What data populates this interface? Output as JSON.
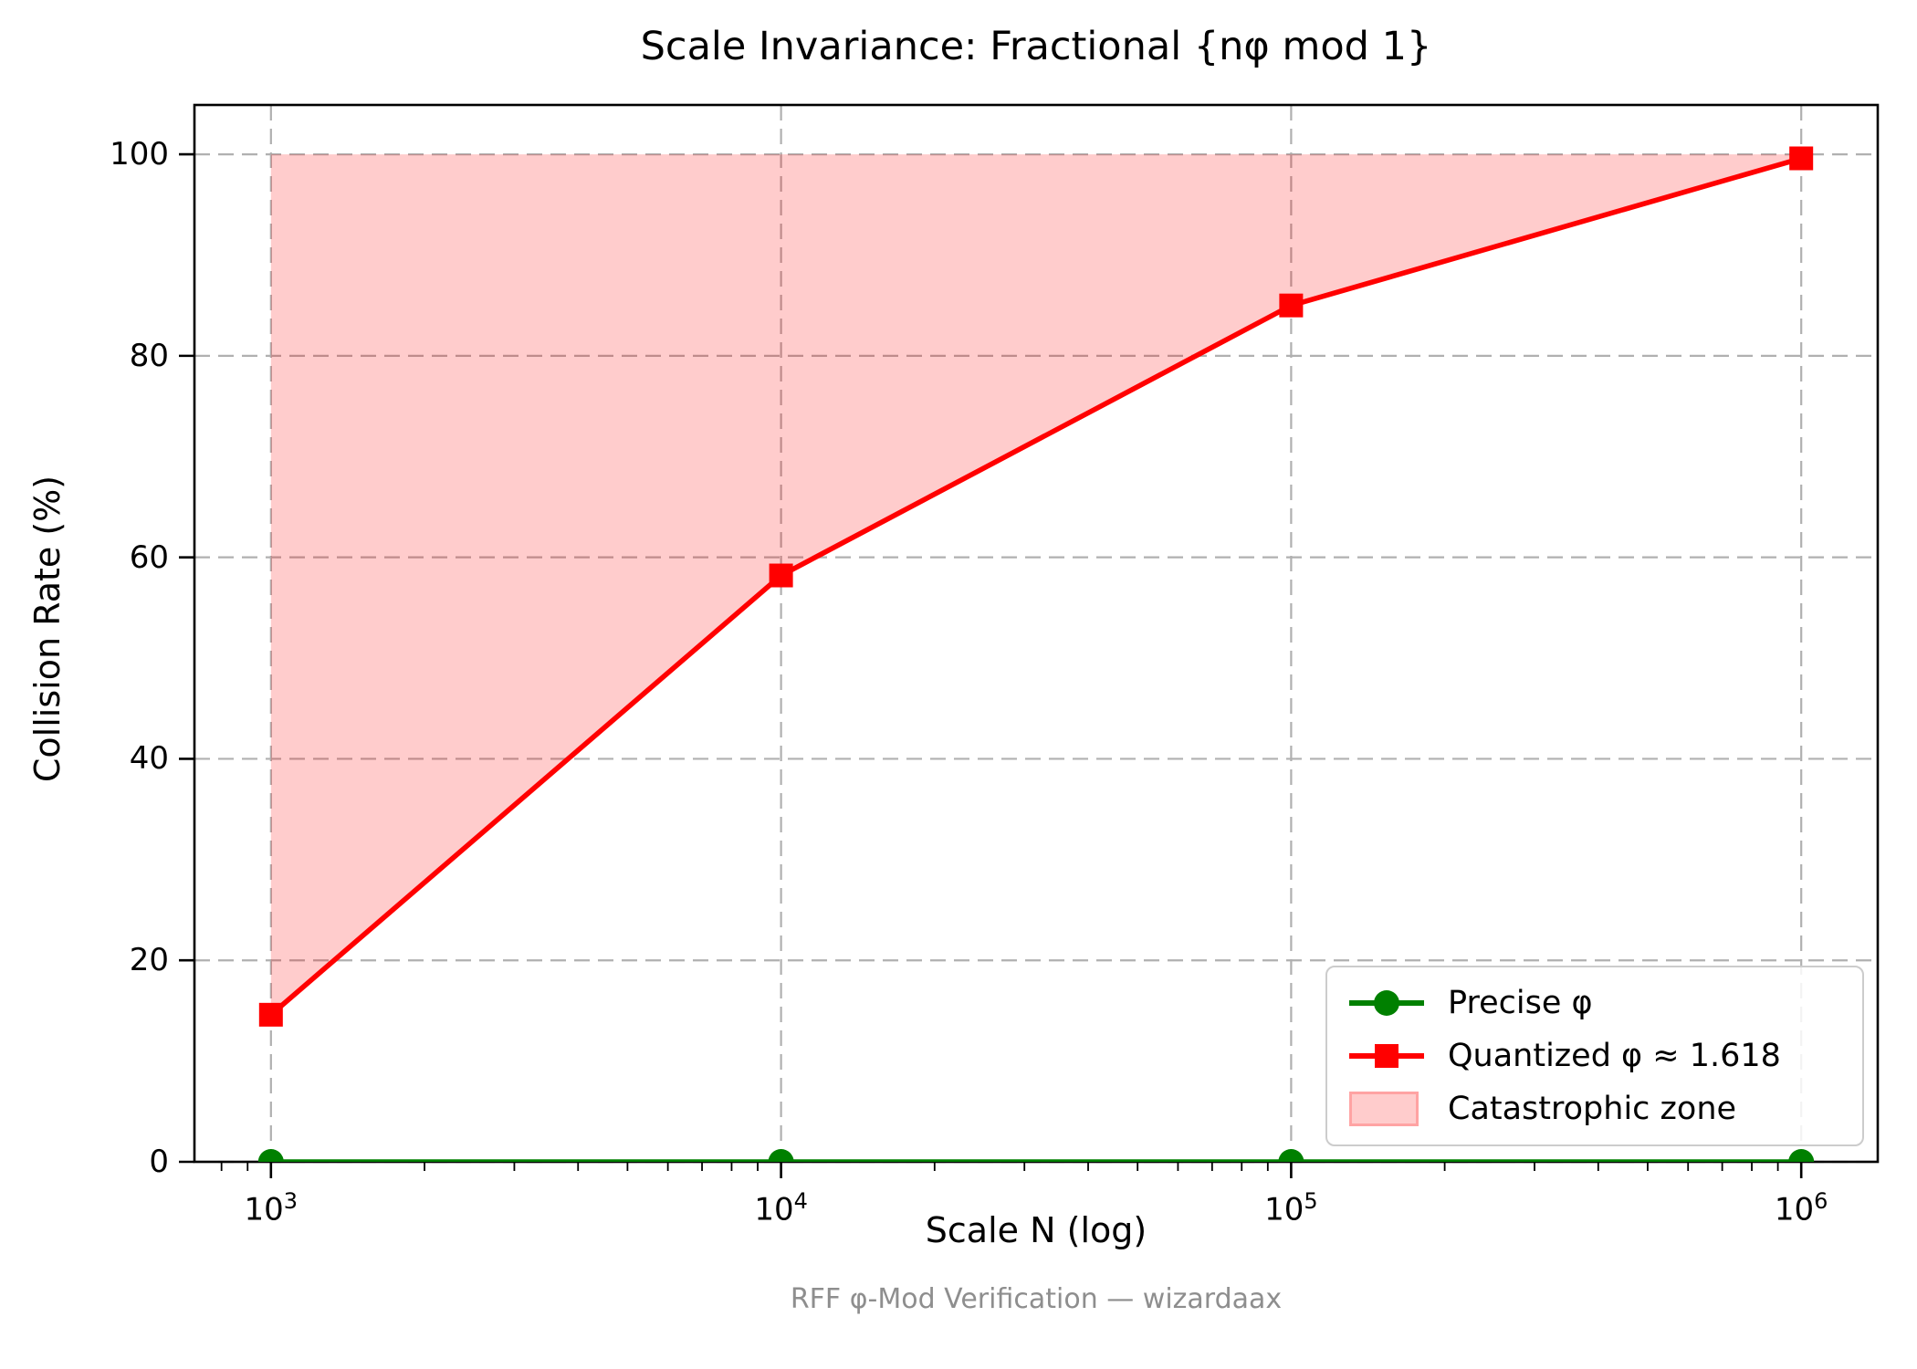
{
  "figure": {
    "footer": "RFF φ-Mod Verification — wizardaax"
  },
  "chart_data": {
    "type": "line",
    "title": "Scale Invariance: Fractional {nφ mod 1}",
    "xlabel": "Scale N (log)",
    "ylabel": "Collision Rate (%)",
    "x_scale": "log",
    "x": [
      1000,
      10000,
      100000,
      1000000
    ],
    "x_tick_labels": [
      "10³",
      "10⁴",
      "10⁵",
      "10⁶"
    ],
    "x_tick_exponents": [
      3,
      4,
      5,
      6
    ],
    "xlim_log10": [
      2.85,
      6.15
    ],
    "ylim": [
      0,
      104.9
    ],
    "yticks": [
      0,
      20,
      40,
      60,
      80,
      100
    ],
    "grid": true,
    "grid_color": "#b0b0b0",
    "grid_style": "dashed",
    "background_color": "#ffffff",
    "series": [
      {
        "name": "Precise φ",
        "color": "#008000",
        "marker": "circle",
        "values": [
          0.0,
          0.0,
          0.0,
          0.0
        ]
      },
      {
        "name": "Quantized φ ≈ 1.618",
        "color": "#ff0000",
        "marker": "square",
        "values": [
          14.6,
          58.2,
          85.0,
          99.6
        ]
      }
    ],
    "zone": {
      "label": "Catastrophic zone",
      "fill_color": "#ff0000",
      "fill_alpha": 0.2,
      "edge_tint": "#ffa3a3",
      "upper_bound": 100,
      "description": "filled area between the quantized series and 100%"
    },
    "legend": {
      "position": "lower right",
      "items": [
        "Precise φ",
        "Quantized φ ≈ 1.618",
        "Catastrophic zone"
      ]
    }
  },
  "legend": {
    "precise_label": "Precise φ",
    "quantized_label": "Quantized φ ≈ 1.618",
    "zone_label": "Catastrophic zone"
  }
}
